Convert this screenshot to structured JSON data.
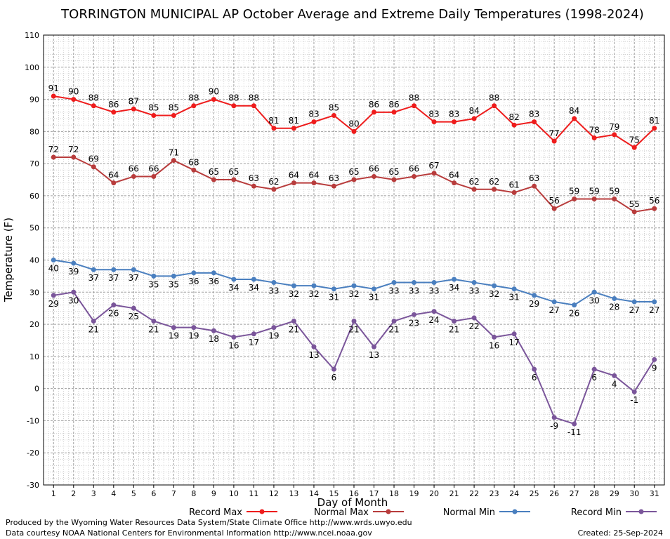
{
  "credits": {
    "produced_by": "Produced by the Wyoming Water Resources Data System/State Climate Office http://www.wrds.uwyo.edu",
    "data_courtesy": "Data courtesy NOAA National Centers for Environmental Information http://www.ncei.noaa.gov",
    "created": "Created:  25-Sep-2024"
  },
  "colors": {
    "record_max": "#ee1c1c",
    "normal_max": "#b83c3c",
    "normal_min": "#4a7fbf",
    "record_min": "#7a559a",
    "grid_major": "#a0a0a0",
    "grid_minor": "#d0d0d0"
  },
  "chart_data": {
    "type": "line",
    "title": "TORRINGTON MUNICIPAL AP October Average and Extreme Daily Temperatures (1998-2024)",
    "xlabel": "Day of Month",
    "ylabel": "Temperature (F)",
    "xlim": [
      0.5,
      31.5
    ],
    "ylim": [
      -30,
      110
    ],
    "ytick_step": 10,
    "grid": true,
    "legend_position": "bottom",
    "x": [
      1,
      2,
      3,
      4,
      5,
      6,
      7,
      8,
      9,
      10,
      11,
      12,
      13,
      14,
      15,
      16,
      17,
      18,
      19,
      20,
      21,
      22,
      23,
      24,
      25,
      26,
      27,
      28,
      29,
      30,
      31
    ],
    "series": [
      {
        "name": "Record Max",
        "color_key": "record_max",
        "label_position": "above",
        "values": [
          91,
          90,
          88,
          86,
          87,
          85,
          85,
          88,
          90,
          88,
          88,
          81,
          81,
          83,
          85,
          80,
          86,
          86,
          88,
          83,
          83,
          84,
          88,
          82,
          83,
          77,
          84,
          78,
          79,
          75,
          81
        ]
      },
      {
        "name": "Normal Max",
        "color_key": "normal_max",
        "label_position": "above",
        "values": [
          72,
          72,
          69,
          64,
          66,
          66,
          71,
          68,
          65,
          65,
          63,
          62,
          64,
          64,
          63,
          65,
          66,
          65,
          66,
          67,
          64,
          62,
          62,
          61,
          63,
          56,
          59,
          59,
          59,
          55,
          56
        ]
      },
      {
        "name": "Normal Min",
        "color_key": "normal_min",
        "label_position": "below",
        "values": [
          40,
          39,
          37,
          37,
          37,
          35,
          35,
          36,
          36,
          34,
          34,
          33,
          32,
          32,
          31,
          32,
          31,
          33,
          33,
          33,
          34,
          33,
          32,
          31,
          29,
          27,
          26,
          30,
          28,
          27,
          27
        ]
      },
      {
        "name": "Record Min",
        "color_key": "record_min",
        "label_position": "below",
        "values": [
          29,
          30,
          21,
          26,
          25,
          21,
          19,
          19,
          18,
          16,
          17,
          19,
          21,
          13,
          6,
          21,
          13,
          21,
          23,
          24,
          21,
          22,
          16,
          17,
          6,
          -9,
          -11,
          6,
          4,
          -1,
          9
        ]
      }
    ]
  }
}
